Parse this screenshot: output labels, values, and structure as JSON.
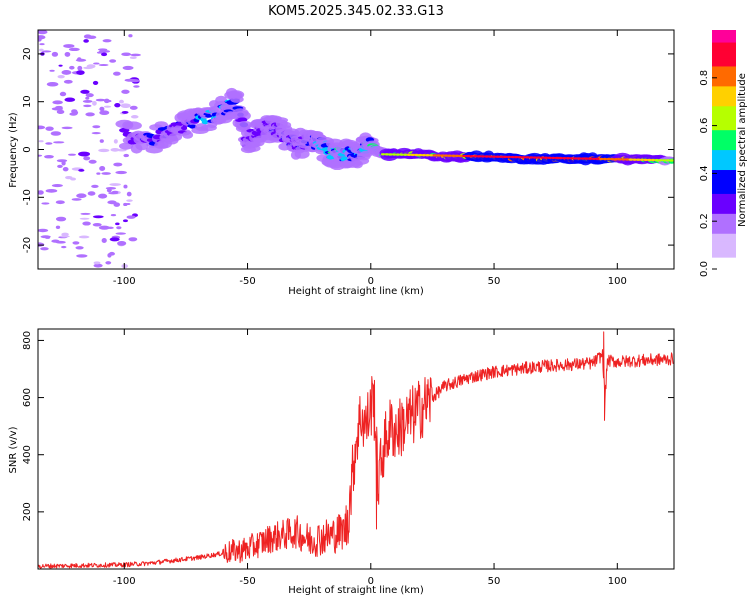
{
  "title": "KOM5.2025.345.02.33.G13",
  "chart_data": [
    {
      "type": "heatmap",
      "name": "spectrogram",
      "xlabel": "Height of straight line (km)",
      "ylabel": "Frequency (Hz)",
      "xlim": [
        -135,
        123
      ],
      "ylim": [
        -25,
        25
      ],
      "xticks": [
        -100,
        -50,
        0,
        50,
        100
      ],
      "xtick_labels": [
        "-100",
        "-50",
        "0",
        "50",
        "100"
      ],
      "yticks": [
        -20,
        -10,
        0,
        10,
        20
      ],
      "ytick_labels": [
        "-20",
        "-10",
        "0",
        "10",
        "20"
      ],
      "colorbar": {
        "label": "Normalized spectral amplitude",
        "range": [
          0,
          1
        ],
        "ticks": [
          0.0,
          0.2,
          0.4,
          0.6,
          0.8
        ],
        "tick_labels": [
          "0.0",
          "0.2",
          "0.4",
          "0.6",
          "0.8"
        ],
        "colors": [
          "#ffffff",
          "#d9b8ff",
          "#b070ff",
          "#6a00ff",
          "#0000ff",
          "#00c8ff",
          "#00ff66",
          "#b6ff00",
          "#ffd000",
          "#ff6a00",
          "#ff0033",
          "#ff0099"
        ]
      },
      "ridge": {
        "x": [
          -100,
          -90,
          -80,
          -70,
          -60,
          -55,
          -50,
          -45,
          -40,
          -35,
          -30,
          -25,
          -20,
          -15,
          -10,
          -5,
          0,
          5,
          10,
          20,
          30,
          40,
          50,
          60,
          70,
          80,
          90,
          100,
          110,
          123
        ],
        "y": [
          3,
          2,
          4,
          6,
          8,
          10,
          2,
          4,
          5,
          3,
          1,
          2,
          1,
          -1,
          -1,
          -1,
          1,
          -1,
          -1,
          -1,
          -1.5,
          -1.5,
          -1.5,
          -2,
          -2,
          -2,
          -2,
          -2,
          -2,
          -2.5
        ],
        "amp": [
          0.3,
          0.35,
          0.35,
          0.4,
          0.45,
          0.4,
          0.3,
          0.3,
          0.3,
          0.35,
          0.35,
          0.35,
          0.5,
          0.5,
          0.45,
          0.45,
          0.5,
          0.55,
          0.6,
          0.65,
          0.75,
          0.8,
          0.85,
          0.9,
          0.9,
          0.9,
          0.85,
          0.8,
          0.7,
          0.5
        ]
      }
    },
    {
      "type": "line",
      "name": "snr",
      "xlabel": "Height of straight line (km)",
      "ylabel": "SNR (v/v)",
      "xlim": [
        -135,
        123
      ],
      "ylim": [
        0,
        840
      ],
      "xticks": [
        -100,
        -50,
        0,
        50,
        100
      ],
      "xtick_labels": [
        "-100",
        "-50",
        "0",
        "50",
        "100"
      ],
      "yticks": [
        200,
        400,
        600,
        800
      ],
      "ytick_labels": [
        "200",
        "400",
        "600",
        "800"
      ],
      "color": "#ee2222",
      "series": [
        {
          "name": "SNR",
          "x": [
            -135,
            -120,
            -100,
            -90,
            -80,
            -70,
            -60,
            -50,
            -45,
            -40,
            -35,
            -30,
            -25,
            -20,
            -15,
            -10,
            -8,
            -6,
            -4,
            -2,
            0,
            1,
            2,
            3,
            5,
            8,
            10,
            15,
            20,
            25,
            30,
            40,
            50,
            60,
            70,
            80,
            90,
            94,
            95,
            96,
            100,
            110,
            123
          ],
          "y": [
            10,
            12,
            15,
            20,
            30,
            40,
            55,
            70,
            90,
            110,
            120,
            130,
            100,
            110,
            120,
            140,
            280,
            450,
            540,
            500,
            560,
            620,
            450,
            300,
            420,
            500,
            480,
            520,
            560,
            600,
            640,
            670,
            690,
            700,
            710,
            715,
            720,
            750,
            600,
            730,
            725,
            730,
            735
          ]
        }
      ],
      "spikes": [
        {
          "x": 1.5,
          "y": 660
        },
        {
          "x": 2.3,
          "y": 140
        },
        {
          "x": 94.5,
          "y": 830
        },
        {
          "x": 94.8,
          "y": 520
        }
      ]
    }
  ]
}
